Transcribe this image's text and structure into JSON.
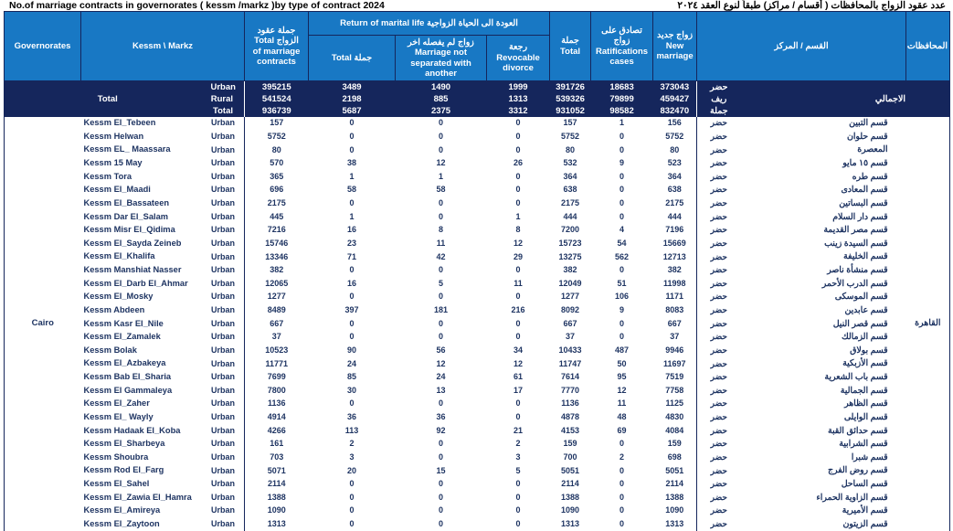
{
  "title_en": "No.of marriage contracts in governorates  ( kessm /markz )by type of contract 2024",
  "title_ar": "عدد عقود الزواج  بالمحافظات ( أقسام / مراكز) طبقاً لنوع العقد ٢٠٢٤",
  "colors": {
    "header_bg": "#1878c4",
    "band_bg": "#15265c",
    "body_text": "#1e3462",
    "header_text": "#ffffff"
  },
  "header": {
    "governorates": "Governorates",
    "kessm_markz": "Kessm \\ Markz",
    "total_contracts": "جملة عقود\nالزواج  Total\nof marriage\ncontracts",
    "return_group": "العودة الى الحياة الزواجية Return of marital life",
    "return_total": "جملة  Total",
    "not_separated": "زواج لم يفصله اخر\nMarriage not\nseparated with\nanother",
    "revocable": "رجعة  Revocable\ndivorce",
    "total": "جملة\nTotal",
    "ratifications": "تصادق على\nزواج\nRatifications\ncases",
    "new_marriage": "زواج جديد\nNew\nmarriage",
    "kessm_markz_ar": "القسم / المركز",
    "governorates_ar": "المحافظات"
  },
  "totals": {
    "label_en": "Total",
    "label_ar": "الاجمالي",
    "rows": [
      {
        "type": "Urban",
        "type_ar": "حضر",
        "values": [
          395215,
          3489,
          1490,
          1999,
          391726,
          18683,
          373043
        ]
      },
      {
        "type": "Rural",
        "type_ar": "ريف",
        "values": [
          541524,
          2198,
          885,
          1313,
          539326,
          79899,
          459427
        ]
      },
      {
        "type": "Total",
        "type_ar": "جملة",
        "values": [
          936739,
          5687,
          2375,
          3312,
          931052,
          98582,
          832470
        ]
      }
    ]
  },
  "body": {
    "governorate_en": "Cairo",
    "governorate_ar": "القاهرة",
    "rows": [
      {
        "kessm_en": "Kessm El_Tebeen",
        "type": "Urban",
        "values": [
          157,
          0,
          0,
          0,
          157,
          1,
          156
        ],
        "type_ar": "حضر",
        "kessm_ar": "قسم التبين"
      },
      {
        "kessm_en": "Kessm Helwan",
        "type": "Urban",
        "values": [
          5752,
          0,
          0,
          0,
          5752,
          0,
          5752
        ],
        "type_ar": "حضر",
        "kessm_ar": "قسم حلوان"
      },
      {
        "kessm_en": "Kessm EL_ Maassara",
        "type": "Urban",
        "values": [
          80,
          0,
          0,
          0,
          80,
          0,
          80
        ],
        "type_ar": "حضر",
        "kessm_ar": "المعصرة"
      },
      {
        "kessm_en": "Kessm 15 May",
        "type": "Urban",
        "values": [
          570,
          38,
          12,
          26,
          532,
          9,
          523
        ],
        "type_ar": "حضر",
        "kessm_ar": "قسم ١٥ مايو"
      },
      {
        "kessm_en": "Kessm Tora",
        "type": "Urban",
        "values": [
          365,
          1,
          1,
          0,
          364,
          0,
          364
        ],
        "type_ar": "حضر",
        "kessm_ar": "قسم طره"
      },
      {
        "kessm_en": "Kessm El_Maadi",
        "type": "Urban",
        "values": [
          696,
          58,
          58,
          0,
          638,
          0,
          638
        ],
        "type_ar": "حضر",
        "kessm_ar": "قسم المعادى"
      },
      {
        "kessm_en": "Kessm El_Bassateen",
        "type": "Urban",
        "values": [
          2175,
          0,
          0,
          0,
          2175,
          0,
          2175
        ],
        "type_ar": "حضر",
        "kessm_ar": "قسم البساتين"
      },
      {
        "kessm_en": "Kessm Dar El_Salam",
        "type": "Urban",
        "values": [
          445,
          1,
          0,
          1,
          444,
          0,
          444
        ],
        "type_ar": "حضر",
        "kessm_ar": "قسم دار السلام"
      },
      {
        "kessm_en": "Kessm Misr El_Qidima",
        "type": "Urban",
        "values": [
          7216,
          16,
          8,
          8,
          7200,
          4,
          7196
        ],
        "type_ar": "حضر",
        "kessm_ar": "قسم مصر القديمة"
      },
      {
        "kessm_en": "Kessm El_Sayda Zeineb",
        "type": "Urban",
        "values": [
          15746,
          23,
          11,
          12,
          15723,
          54,
          15669
        ],
        "type_ar": "حضر",
        "kessm_ar": "قسم السيدة زينب"
      },
      {
        "kessm_en": "Kessm El_Khalifa",
        "type": "Urban",
        "values": [
          13346,
          71,
          42,
          29,
          13275,
          562,
          12713
        ],
        "type_ar": "حضر",
        "kessm_ar": "قسم الخليفة"
      },
      {
        "kessm_en": "Kessm Manshiat Nasser",
        "type": "Urban",
        "values": [
          382,
          0,
          0,
          0,
          382,
          0,
          382
        ],
        "type_ar": "حضر",
        "kessm_ar": "قسم منشأة ناصر"
      },
      {
        "kessm_en": "Kessm El_Darb El_Ahmar",
        "type": "Urban",
        "values": [
          12065,
          16,
          5,
          11,
          12049,
          51,
          11998
        ],
        "type_ar": "حضر",
        "kessm_ar": "قسم الدرب الأحمر"
      },
      {
        "kessm_en": "Kessm El_Mosky",
        "type": "Urban",
        "values": [
          1277,
          0,
          0,
          0,
          1277,
          106,
          1171
        ],
        "type_ar": "حضر",
        "kessm_ar": "قسم الموسكى"
      },
      {
        "kessm_en": "Kessm Abdeen",
        "type": "Urban",
        "values": [
          8489,
          397,
          181,
          216,
          8092,
          9,
          8083
        ],
        "type_ar": "حضر",
        "kessm_ar": "قسم عابدين"
      },
      {
        "kessm_en": "Kessm Kasr El_Nile",
        "type": "Urban",
        "values": [
          667,
          0,
          0,
          0,
          667,
          0,
          667
        ],
        "type_ar": "حضر",
        "kessm_ar": "قسم قصر النيل"
      },
      {
        "kessm_en": "Kessm El_Zamalek",
        "type": "Urban",
        "values": [
          37,
          0,
          0,
          0,
          37,
          0,
          37
        ],
        "type_ar": "حضر",
        "kessm_ar": "قسم الزمالك"
      },
      {
        "kessm_en": "Kessm Bolak",
        "type": "Urban",
        "values": [
          10523,
          90,
          56,
          34,
          10433,
          487,
          9946
        ],
        "type_ar": "حضر",
        "kessm_ar": "قسم بولاق"
      },
      {
        "kessm_en": "Kessm El_Azbakeya",
        "type": "Urban",
        "values": [
          11771,
          24,
          12,
          12,
          11747,
          50,
          11697
        ],
        "type_ar": "حضر",
        "kessm_ar": "قسم الأزبكية"
      },
      {
        "kessm_en": "Kessm Bab El_Sharia",
        "type": "Urban",
        "values": [
          7699,
          85,
          24,
          61,
          7614,
          95,
          7519
        ],
        "type_ar": "حضر",
        "kessm_ar": "قسم باب الشعرية"
      },
      {
        "kessm_en": "Kessm El Gammaleya",
        "type": "Urban",
        "values": [
          7800,
          30,
          13,
          17,
          7770,
          12,
          7758
        ],
        "type_ar": "حضر",
        "kessm_ar": "قسم الجمالية"
      },
      {
        "kessm_en": "Kessm El_Zaher",
        "type": "Urban",
        "values": [
          1136,
          0,
          0,
          0,
          1136,
          11,
          1125
        ],
        "type_ar": "حضر",
        "kessm_ar": "قسم الظاهر"
      },
      {
        "kessm_en": "Kessm El_ Wayly",
        "type": "Urban",
        "values": [
          4914,
          36,
          36,
          0,
          4878,
          48,
          4830
        ],
        "type_ar": "حضر",
        "kessm_ar": "قسم الوايلى"
      },
      {
        "kessm_en": "Kessm Hadaak El_Koba",
        "type": "Urban",
        "values": [
          4266,
          113,
          92,
          21,
          4153,
          69,
          4084
        ],
        "type_ar": "حضر",
        "kessm_ar": "قسم حدائق القبة"
      },
      {
        "kessm_en": "Kessm El_Sharbeya",
        "type": "Urban",
        "values": [
          161,
          2,
          0,
          2,
          159,
          0,
          159
        ],
        "type_ar": "حضر",
        "kessm_ar": "قسم الشرابية"
      },
      {
        "kessm_en": "Kessm Shoubra",
        "type": "Urban",
        "values": [
          703,
          3,
          0,
          3,
          700,
          2,
          698
        ],
        "type_ar": "حضر",
        "kessm_ar": "قسم شبرا"
      },
      {
        "kessm_en": "Kessm Rod El_Farg",
        "type": "Urban",
        "values": [
          5071,
          20,
          15,
          5,
          5051,
          0,
          5051
        ],
        "type_ar": "حضر",
        "kessm_ar": "قسم روض الفرج"
      },
      {
        "kessm_en": "Kessm El_Sahel",
        "type": "Urban",
        "values": [
          2114,
          0,
          0,
          0,
          2114,
          0,
          2114
        ],
        "type_ar": "حضر",
        "kessm_ar": "قسم الساحل"
      },
      {
        "kessm_en": "Kessm El_Zawia El_Hamra",
        "type": "Urban",
        "values": [
          1388,
          0,
          0,
          0,
          1388,
          0,
          1388
        ],
        "type_ar": "حضر",
        "kessm_ar": "قسم الزاوية الحمراء"
      },
      {
        "kessm_en": "Kessm El_Amireya",
        "type": "Urban",
        "values": [
          1090,
          0,
          0,
          0,
          1090,
          0,
          1090
        ],
        "type_ar": "حضر",
        "kessm_ar": "قسم الأميرية"
      },
      {
        "kessm_en": "Kessm El_Zaytoon",
        "type": "Urban",
        "values": [
          1313,
          0,
          0,
          0,
          1313,
          0,
          1313
        ],
        "type_ar": "حضر",
        "kessm_ar": "قسم الزيتون"
      }
    ]
  }
}
